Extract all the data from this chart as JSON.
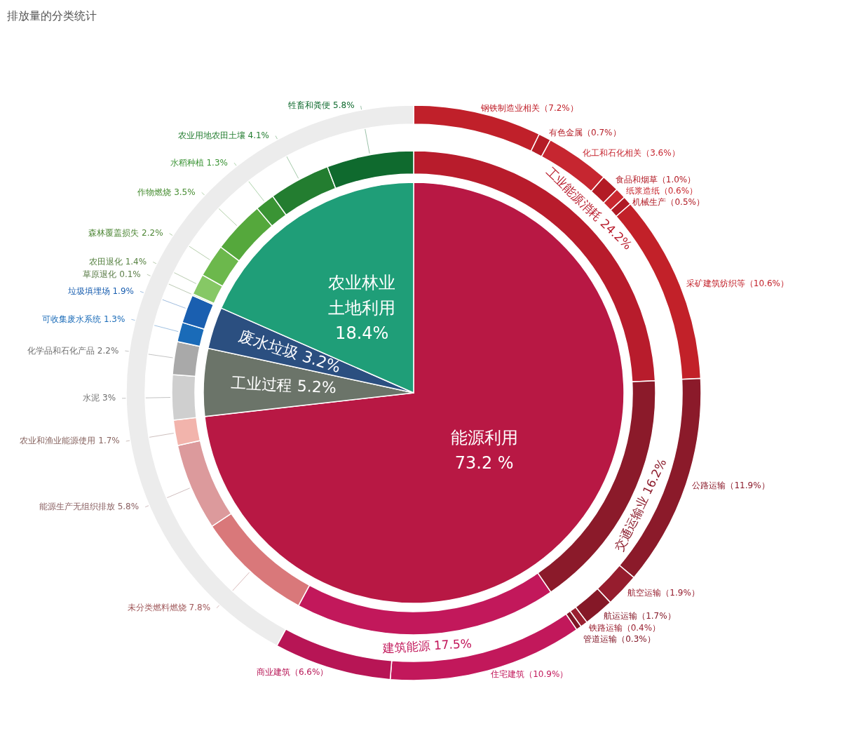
{
  "chart_data": [
    {
      "type": "pie",
      "title": "排放量的分类统计",
      "categories": [
        "能源利用",
        "工业过程",
        "废水垃圾",
        "农业林业土地利用"
      ],
      "values": [
        73.2,
        5.2,
        3.2,
        18.4
      ],
      "value_labels": [
        "73.2 %",
        "5.2%",
        "3.2%",
        "18.4%"
      ],
      "colors": [
        "#b81844",
        "#6b7469",
        "#2b4f80",
        "#1f9e78"
      ]
    },
    {
      "type": "donut",
      "categories": [
        "工业能源消耗",
        "交通运输业",
        "建筑能源",
        "未分类燃料燃烧",
        "能源生产无组织排放",
        "农业和渔业能源使用",
        "水泥",
        "化学品和石化产品",
        "可收集废水系统",
        "垃圾填埋场",
        "草原退化",
        "农田退化",
        "森林覆盖损失",
        "作物燃烧",
        "水稻种植",
        "农业用地农田土壤",
        "牲畜和粪便"
      ],
      "values": [
        24.2,
        16.2,
        17.5,
        7.8,
        5.8,
        1.7,
        3,
        2.2,
        1.3,
        1.9,
        0.1,
        1.4,
        2.2,
        3.5,
        1.3,
        4.1,
        5.8
      ],
      "value_labels": [
        "24.2%",
        "16.2%",
        "17.5%",
        "7.8%",
        "5.8%",
        "1.7%",
        "3%",
        "2.2%",
        "1.3%",
        "1.9%",
        "0.1%",
        "1.4%",
        "2.2%",
        "3.5%",
        "1.3%",
        "4.1%",
        "5.8%"
      ],
      "colors": [
        "#b81c2c",
        "#8b1a2a",
        "#c2185b",
        "#d9787a",
        "#dc9a9c",
        "#f2b4ac",
        "#cfcfcf",
        "#a9a9a9",
        "#1a6bb8",
        "#1a5fb0",
        "#9ad47a",
        "#86c865",
        "#6cb84c",
        "#55a83c",
        "#3a9434",
        "#237d30",
        "#0f6a2e"
      ]
    },
    {
      "type": "donut",
      "categories": [
        "钢铁制造业相关",
        "有色金属",
        "化工和石化相关",
        "食品和烟草",
        "纸浆造纸",
        "机械生产",
        "采矿建筑纺织等",
        "公路运输",
        "航空运输",
        "航运运输",
        "铁路运输",
        "管道运输",
        "住宅建筑",
        "商业建筑",
        null
      ],
      "values": [
        7.2,
        0.7,
        3.6,
        1.0,
        0.6,
        0.5,
        10.6,
        11.9,
        1.9,
        1.7,
        0.4,
        0.3,
        10.9,
        6.6,
        42.1
      ],
      "value_labels": [
        "（7.2%）",
        "（0.7%）",
        "（3.6%）",
        "（1.0%）",
        "（0.6%）",
        "（0.5%）",
        "（10.6%）",
        "（11.9%）",
        "（1.9%）",
        "（1.7%）",
        "（0.4%）",
        "（0.3%）",
        "（10.9%）",
        "（6.6%）",
        null
      ],
      "colors": [
        "#c0202a",
        "#b51c26",
        "#c62630",
        "#b31b25",
        "#c8282f",
        "#b01a24",
        "#c22129",
        "#8b1a2a",
        "#961d2e",
        "#851827",
        "#9a2030",
        "#801626",
        "#c2185b",
        "#b71555",
        "#ececec"
      ]
    }
  ]
}
